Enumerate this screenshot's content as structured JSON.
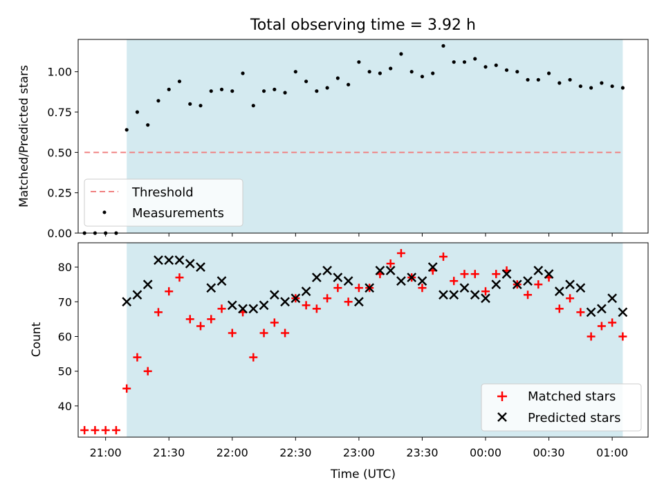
{
  "chart_data": [
    {
      "type": "scatter",
      "title": "Total observing time = 3.92 h",
      "xlabel": "",
      "ylabel": "Matched/Predicted stars",
      "ylim": [
        0,
        1.2
      ],
      "yticks": [
        "0.00",
        "0.25",
        "0.50",
        "0.75",
        "1.00"
      ],
      "xlim": [
        "20:47",
        "01:17"
      ],
      "x_unit": "minutes after 20:00 UTC",
      "shaded_span": [
        "21:10",
        "01:05"
      ],
      "grid": false,
      "legend_position": "lower-left",
      "threshold": {
        "name": "Threshold",
        "color": "#f08080",
        "y": 0.5,
        "x": [
          "20:50",
          "01:05"
        ]
      },
      "series": [
        {
          "name": "Measurements",
          "color": "#000000",
          "x": [
            "20:50",
            "20:55",
            "21:00",
            "21:05",
            "21:10",
            "21:15",
            "21:20",
            "21:25",
            "21:30",
            "21:35",
            "21:40",
            "21:45",
            "21:50",
            "21:55",
            "22:00",
            "22:05",
            "22:10",
            "22:15",
            "22:20",
            "22:25",
            "22:30",
            "22:35",
            "22:40",
            "22:45",
            "22:50",
            "22:55",
            "23:00",
            "23:05",
            "23:10",
            "23:15",
            "23:20",
            "23:25",
            "23:30",
            "23:35",
            "23:40",
            "23:45",
            "23:50",
            "23:55",
            "00:00",
            "00:05",
            "00:10",
            "00:15",
            "00:20",
            "00:25",
            "00:30",
            "00:35",
            "00:40",
            "00:45",
            "00:50",
            "00:55",
            "01:00",
            "01:05"
          ],
          "values": [
            0,
            0,
            0,
            0,
            0.64,
            0.75,
            0.67,
            0.82,
            0.89,
            0.94,
            0.8,
            0.79,
            0.88,
            0.89,
            0.88,
            0.99,
            0.79,
            0.88,
            0.89,
            0.87,
            1.0,
            0.94,
            0.88,
            0.9,
            0.96,
            0.92,
            1.06,
            1.0,
            0.99,
            1.02,
            1.11,
            1.0,
            0.97,
            0.99,
            1.16,
            1.06,
            1.06,
            1.08,
            1.03,
            1.04,
            1.01,
            1.0,
            0.95,
            0.95,
            0.99,
            0.93,
            0.95,
            0.91,
            0.9,
            0.93,
            0.91,
            0.9
          ]
        }
      ]
    },
    {
      "type": "scatter",
      "title": "",
      "xlabel": "Time (UTC)",
      "ylabel": "Count",
      "ylim": [
        31,
        87
      ],
      "yticks": [
        "40",
        "50",
        "60",
        "70",
        "80"
      ],
      "xlim": [
        "20:47",
        "01:17"
      ],
      "x_unit": "minutes after 20:00 UTC",
      "xticks": [
        "21:00",
        "21:30",
        "22:00",
        "22:30",
        "23:00",
        "23:30",
        "00:00",
        "00:30",
        "01:00"
      ],
      "shaded_span": [
        "21:10",
        "01:05"
      ],
      "grid": false,
      "legend_position": "lower-right",
      "series": [
        {
          "name": "Matched stars",
          "marker": "plus",
          "color": "#ff0000",
          "x": [
            "20:50",
            "20:55",
            "21:00",
            "21:05",
            "21:10",
            "21:15",
            "21:20",
            "21:25",
            "21:30",
            "21:35",
            "21:40",
            "21:45",
            "21:50",
            "21:55",
            "22:00",
            "22:05",
            "22:10",
            "22:15",
            "22:20",
            "22:25",
            "22:30",
            "22:35",
            "22:40",
            "22:45",
            "22:50",
            "22:55",
            "23:00",
            "23:05",
            "23:10",
            "23:15",
            "23:20",
            "23:25",
            "23:30",
            "23:35",
            "23:40",
            "23:45",
            "23:50",
            "23:55",
            "00:00",
            "00:05",
            "00:10",
            "00:15",
            "00:20",
            "00:25",
            "00:30",
            "00:35",
            "00:40",
            "00:45",
            "00:50",
            "00:55",
            "01:00",
            "01:05"
          ],
          "values": [
            33,
            33,
            33,
            33,
            45,
            54,
            50,
            67,
            73,
            77,
            65,
            63,
            65,
            68,
            61,
            67,
            54,
            61,
            64,
            61,
            71,
            69,
            68,
            71,
            74,
            70,
            74,
            74,
            78,
            81,
            84,
            77,
            74,
            79,
            83,
            76,
            78,
            78,
            73,
            78,
            79,
            75,
            72,
            75,
            77,
            68,
            71,
            67,
            60,
            63,
            64,
            60
          ]
        },
        {
          "name": "Predicted stars",
          "marker": "x",
          "color": "#000000",
          "x": [
            "21:10",
            "21:15",
            "21:20",
            "21:25",
            "21:30",
            "21:35",
            "21:40",
            "21:45",
            "21:50",
            "21:55",
            "22:00",
            "22:05",
            "22:10",
            "22:15",
            "22:20",
            "22:25",
            "22:30",
            "22:35",
            "22:40",
            "22:45",
            "22:50",
            "22:55",
            "23:00",
            "23:05",
            "23:10",
            "23:15",
            "23:20",
            "23:25",
            "23:30",
            "23:35",
            "23:40",
            "23:45",
            "23:50",
            "23:55",
            "00:00",
            "00:05",
            "00:10",
            "00:15",
            "00:20",
            "00:25",
            "00:30",
            "00:35",
            "00:40",
            "00:45",
            "00:50",
            "00:55",
            "01:00",
            "01:05"
          ],
          "values": [
            70,
            72,
            75,
            82,
            82,
            82,
            81,
            80,
            74,
            76,
            69,
            68,
            68,
            69,
            72,
            70,
            71,
            73,
            77,
            79,
            77,
            76,
            70,
            74,
            79,
            79,
            76,
            77,
            76,
            80,
            72,
            72,
            74,
            72,
            71,
            75,
            78,
            75,
            76,
            79,
            78,
            73,
            75,
            74,
            67,
            68,
            71,
            67
          ]
        }
      ]
    }
  ]
}
